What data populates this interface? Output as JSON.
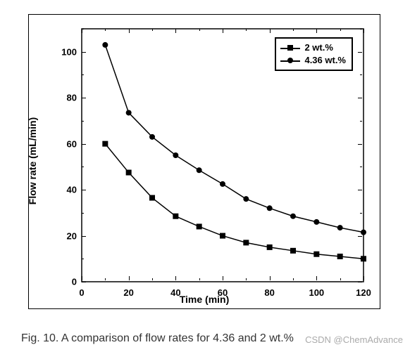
{
  "chart": {
    "type": "line",
    "xlabel": "Time (min)",
    "ylabel": "Flow rate (mL/min)",
    "xlim": [
      0,
      120
    ],
    "ylim": [
      0,
      110
    ],
    "xticks": [
      0,
      20,
      40,
      60,
      80,
      100,
      120
    ],
    "yticks": [
      0,
      20,
      40,
      60,
      80,
      100
    ],
    "xtick_minor": [
      10,
      30,
      50,
      70,
      90,
      110
    ],
    "ytick_minor": [
      10,
      30,
      50,
      70,
      90,
      110
    ],
    "background_color": "#ffffff",
    "axis_color": "#000000",
    "label_fontsize": 14,
    "tick_fontsize": 13,
    "line_width": 1.5,
    "marker_size": 8,
    "series": [
      {
        "name": "2 wt.%",
        "marker": "square",
        "color": "#000000",
        "x": [
          10,
          20,
          30,
          40,
          50,
          60,
          70,
          80,
          90,
          100,
          110,
          120
        ],
        "y": [
          60,
          47.5,
          36.5,
          28.5,
          24,
          20,
          17,
          15,
          13.5,
          12,
          11,
          10
        ]
      },
      {
        "name": "4.36 wt.%",
        "marker": "circle",
        "color": "#000000",
        "x": [
          10,
          20,
          30,
          40,
          50,
          60,
          70,
          80,
          90,
          100,
          110,
          120
        ],
        "y": [
          103,
          73.5,
          63,
          55,
          48.5,
          42.5,
          36,
          32,
          28.5,
          26,
          23.5,
          21.5
        ]
      }
    ],
    "legend": {
      "position": "top-right",
      "border_color": "#000000",
      "items": [
        {
          "marker": "square",
          "label": "2 wt.%"
        },
        {
          "marker": "circle",
          "label": "4.36 wt.%"
        }
      ]
    }
  },
  "caption": "Fig. 10. A comparison of flow rates for 4.36 and 2 wt.%",
  "watermark": "CSDN @ChemAdvance"
}
